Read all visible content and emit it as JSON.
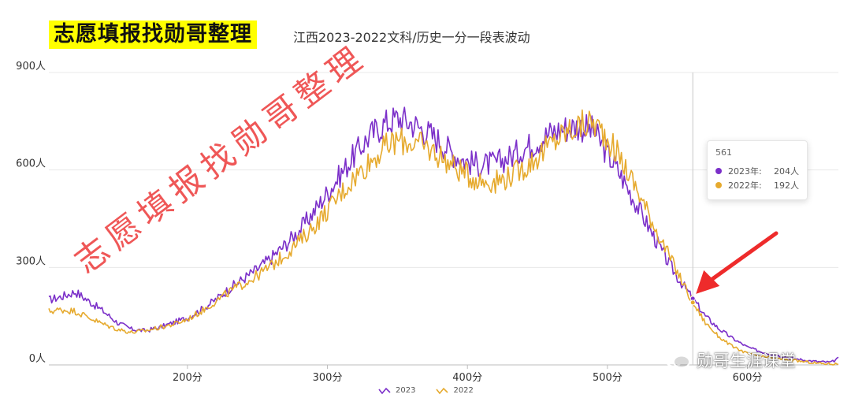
{
  "header": {
    "badge_text": "志愿填报找勋哥整理",
    "subtitle": "江西2023-2022文科/历史一分一段表波动"
  },
  "watermark": {
    "text": "志愿填报找勋哥整理"
  },
  "brand": {
    "text": "勋哥生涯课堂",
    "icon": "wechat-icon"
  },
  "colors": {
    "series_2023": "#7b2fc9",
    "series_2022": "#e6aa2e",
    "grid": "#e8e8e8",
    "arrow": "#ee2b2b"
  },
  "tooltip": {
    "x_label": "561",
    "rows": [
      {
        "name": "2023年:",
        "value": "204人"
      },
      {
        "name": "2022年:",
        "value": "192人"
      }
    ]
  },
  "chart_data": {
    "type": "line",
    "title": "江西2023-2022文科/历史一分一段表波动",
    "xlabel": "",
    "ylabel": "",
    "xlim": [
      101,
      665
    ],
    "ylim": [
      0,
      900
    ],
    "x_ticks": [
      200,
      300,
      400,
      500,
      600
    ],
    "x_tick_labels": [
      "200分",
      "300分",
      "400分",
      "500分",
      "600分"
    ],
    "y_ticks": [
      0,
      300,
      600,
      900
    ],
    "y_tick_labels": [
      "0人",
      "300人",
      "600人",
      "900人"
    ],
    "legend": [
      "2023",
      "2022"
    ],
    "legend_position": "bottom-center",
    "highlight": {
      "x": 561,
      "values": [
        204,
        192
      ]
    },
    "series": [
      {
        "name": "2023",
        "x": [
          101,
          110,
          120,
          130,
          140,
          150,
          160,
          170,
          180,
          190,
          200,
          210,
          220,
          230,
          240,
          250,
          260,
          270,
          280,
          290,
          300,
          310,
          320,
          330,
          340,
          350,
          360,
          370,
          380,
          390,
          400,
          410,
          420,
          430,
          440,
          450,
          460,
          470,
          480,
          490,
          500,
          510,
          520,
          530,
          540,
          550,
          561,
          570,
          580,
          590,
          600,
          610,
          620,
          630,
          640,
          650,
          660,
          665
        ],
        "values": [
          200,
          210,
          225,
          195,
          165,
          130,
          110,
          105,
          115,
          130,
          145,
          170,
          200,
          235,
          265,
          295,
          330,
          370,
          415,
          470,
          530,
          590,
          650,
          705,
          740,
          760,
          745,
          720,
          690,
          650,
          625,
          615,
          620,
          640,
          665,
          690,
          715,
          730,
          735,
          720,
          650,
          580,
          500,
          420,
          340,
          270,
          204,
          150,
          110,
          80,
          55,
          40,
          30,
          22,
          15,
          10,
          8,
          20
        ]
      },
      {
        "name": "2022",
        "x": [
          101,
          110,
          120,
          130,
          140,
          150,
          160,
          170,
          180,
          190,
          200,
          210,
          220,
          230,
          240,
          250,
          260,
          270,
          280,
          290,
          300,
          310,
          320,
          330,
          340,
          350,
          360,
          370,
          380,
          390,
          400,
          410,
          420,
          430,
          440,
          450,
          460,
          470,
          480,
          490,
          500,
          510,
          520,
          530,
          540,
          550,
          561,
          570,
          580,
          590,
          600,
          610,
          620,
          630,
          640,
          650,
          660,
          665
        ],
        "values": [
          165,
          170,
          165,
          145,
          125,
          110,
          100,
          105,
          115,
          125,
          140,
          165,
          195,
          225,
          250,
          275,
          305,
          340,
          380,
          425,
          475,
          530,
          580,
          625,
          665,
          690,
          685,
          670,
          645,
          610,
          585,
          565,
          565,
          580,
          605,
          640,
          680,
          715,
          735,
          745,
          700,
          630,
          550,
          460,
          370,
          285,
          192,
          130,
          85,
          55,
          35,
          25,
          20,
          15,
          10,
          5,
          3,
          3
        ]
      }
    ]
  }
}
